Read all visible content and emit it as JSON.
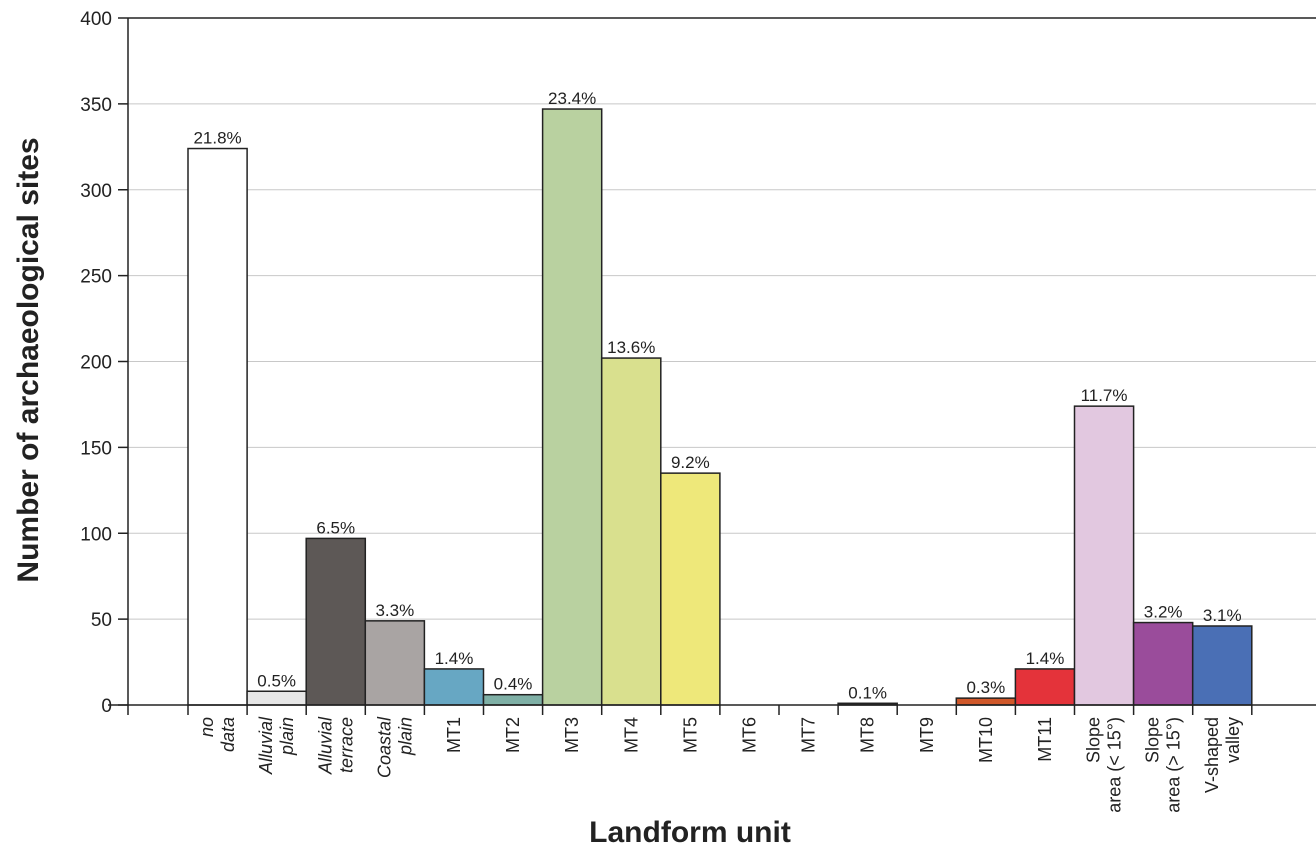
{
  "chart_data": {
    "type": "bar",
    "xlabel": "Landform unit",
    "ylabel": "Number of archaeological sites",
    "ylim": [
      0,
      400
    ],
    "yticks": [
      0,
      50,
      100,
      150,
      200,
      250,
      300,
      350,
      400
    ],
    "grid": "horizontal",
    "categories": [
      {
        "lines": [
          "no",
          "data"
        ],
        "italic": true,
        "value": 324,
        "pct": "21.8%",
        "color": "#ffffff"
      },
      {
        "lines": [
          "Alluvial",
          "plain"
        ],
        "italic": true,
        "value": 8,
        "pct": "0.5%",
        "color": "#e6e6e6"
      },
      {
        "lines": [
          "Alluvial",
          "terrace"
        ],
        "italic": true,
        "value": 97,
        "pct": "6.5%",
        "color": "#5d5856"
      },
      {
        "lines": [
          "Coastal",
          "plain"
        ],
        "italic": true,
        "value": 49,
        "pct": "3.3%",
        "color": "#a9a4a3"
      },
      {
        "lines": [
          "MT1"
        ],
        "italic": false,
        "value": 21,
        "pct": "1.4%",
        "color": "#67a7c3"
      },
      {
        "lines": [
          "MT2"
        ],
        "italic": false,
        "value": 6,
        "pct": "0.4%",
        "color": "#7fb0a6"
      },
      {
        "lines": [
          "MT3"
        ],
        "italic": false,
        "value": 347,
        "pct": "23.4%",
        "color": "#b9d1a0"
      },
      {
        "lines": [
          "MT4"
        ],
        "italic": false,
        "value": 202,
        "pct": "13.6%",
        "color": "#d9e08e"
      },
      {
        "lines": [
          "MT5"
        ],
        "italic": false,
        "value": 135,
        "pct": "9.2%",
        "color": "#eee87a"
      },
      {
        "lines": [
          "MT6"
        ],
        "italic": false,
        "value": 0,
        "pct": "",
        "color": "#ffffff"
      },
      {
        "lines": [
          "MT7"
        ],
        "italic": false,
        "value": 0,
        "pct": "",
        "color": "#ffffff"
      },
      {
        "lines": [
          "MT8"
        ],
        "italic": false,
        "value": 1,
        "pct": "0.1%",
        "color": "#333333"
      },
      {
        "lines": [
          "MT9"
        ],
        "italic": false,
        "value": 0,
        "pct": "",
        "color": "#ffffff"
      },
      {
        "lines": [
          "MT10"
        ],
        "italic": false,
        "value": 4,
        "pct": "0.3%",
        "color": "#d0582a"
      },
      {
        "lines": [
          "MT11"
        ],
        "italic": false,
        "value": 21,
        "pct": "1.4%",
        "color": "#e4333a"
      },
      {
        "lines": [
          "Slope",
          "area (< 15°)"
        ],
        "italic": false,
        "value": 174,
        "pct": "11.7%",
        "color": "#e2c8e0"
      },
      {
        "lines": [
          "Slope",
          "area (> 15°)"
        ],
        "italic": false,
        "value": 48,
        "pct": "3.2%",
        "color": "#9a4c9b"
      },
      {
        "lines": [
          "V-shaped",
          "valley"
        ],
        "italic": false,
        "value": 46,
        "pct": "3.1%",
        "color": "#4a6fb5"
      }
    ]
  }
}
